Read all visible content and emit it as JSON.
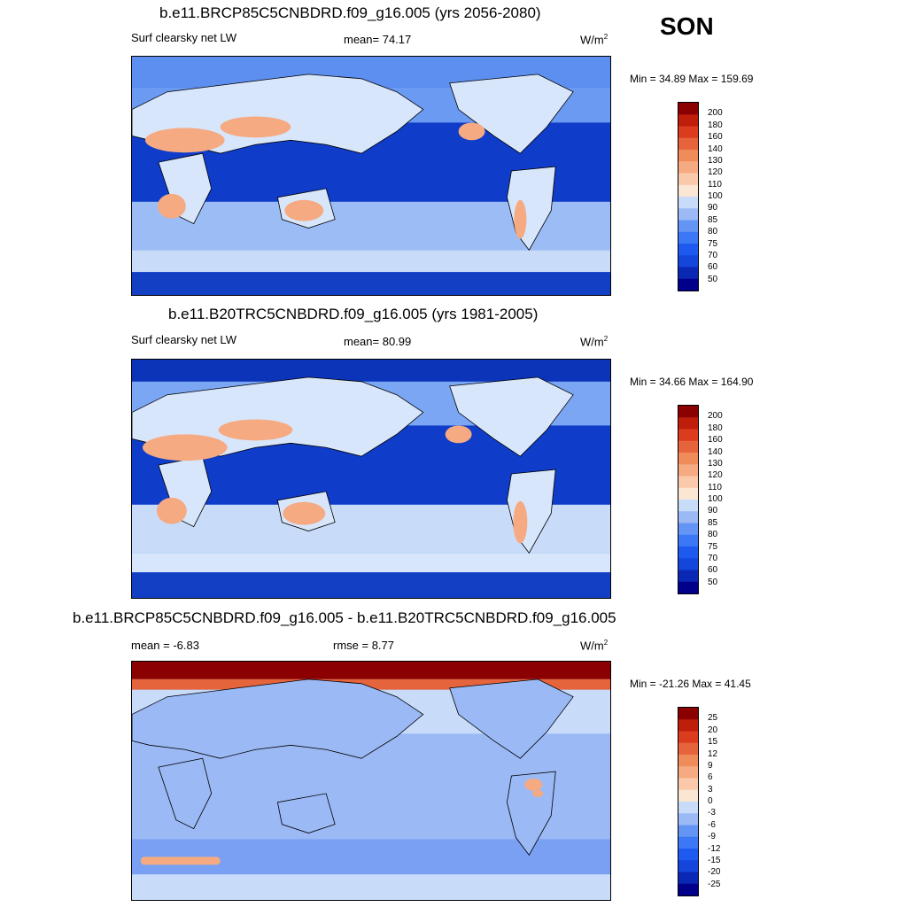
{
  "season": "SON",
  "colors": {
    "ocean_deep": "#0a3cd2",
    "ocean_mid": "#3c6ee6",
    "ocean_light": "#9bbcf5",
    "pale_blue": "#d8e6fb",
    "warm": "#f4a582",
    "hot": "#d9482a",
    "land_line": "#000000"
  },
  "panels": [
    {
      "title": "b.e11.BRCP85C5CNBDRD.f09_g16.005 (yrs 2056-2080)",
      "left_label": "Surf clearsky net LW",
      "mid_label": "mean=  74.17",
      "units_base": "W/m",
      "units_exp": "2",
      "minmax": "Min =  34.89 Max = 159.69"
    },
    {
      "title": "b.e11.B20TRC5CNBDRD.f09_g16.005 (yrs 1981-2005)",
      "left_label": "Surf clearsky net LW",
      "mid_label": "mean=  80.99",
      "units_base": "W/m",
      "units_exp": "2",
      "minmax": "Min =  34.66 Max = 164.90"
    },
    {
      "title": "b.e11.BRCP85C5CNBDRD.f09_g16.005 - b.e11.B20TRC5CNBDRD.f09_g16.005",
      "left_label": "mean =  -6.83",
      "mid_label": "rmse =   8.77",
      "units_base": "W/m",
      "units_exp": "2",
      "minmax": "Min = -21.26 Max =  41.45"
    }
  ],
  "chart_data": [
    {
      "type": "heatmap",
      "title": "b.e11.BRCP85C5CNBDRD.f09_g16.005 (yrs 2056-2080)",
      "variable": "Surf clearsky net LW",
      "units": "W/m2",
      "mean": 74.17,
      "min": 34.89,
      "max": 159.69,
      "colorbar_levels": [
        50,
        60,
        70,
        75,
        80,
        85,
        90,
        100,
        110,
        120,
        130,
        140,
        160,
        180,
        200
      ],
      "colorbar_colors": [
        "#00008b",
        "#0a28b4",
        "#1446dc",
        "#1e5af0",
        "#3c78f5",
        "#6495f5",
        "#9bb9f5",
        "#c8dcfa",
        "#fae6d2",
        "#fac8aa",
        "#f5aa82",
        "#f08c5a",
        "#e6643c",
        "#dc3c1e",
        "#be1e0a",
        "#8b0000"
      ]
    },
    {
      "type": "heatmap",
      "title": "b.e11.B20TRC5CNBDRD.f09_g16.005 (yrs 1981-2005)",
      "variable": "Surf clearsky net LW",
      "units": "W/m2",
      "mean": 80.99,
      "min": 34.66,
      "max": 164.9,
      "colorbar_levels": [
        50,
        60,
        70,
        75,
        80,
        85,
        90,
        100,
        110,
        120,
        130,
        140,
        160,
        180,
        200
      ],
      "colorbar_colors": [
        "#00008b",
        "#0a28b4",
        "#1446dc",
        "#1e5af0",
        "#3c78f5",
        "#6495f5",
        "#9bb9f5",
        "#c8dcfa",
        "#fae6d2",
        "#fac8aa",
        "#f5aa82",
        "#f08c5a",
        "#e6643c",
        "#dc3c1e",
        "#be1e0a",
        "#8b0000"
      ]
    },
    {
      "type": "heatmap",
      "title": "b.e11.BRCP85C5CNBDRD.f09_g16.005 - b.e11.B20TRC5CNBDRD.f09_g16.005",
      "units": "W/m2",
      "mean": -6.83,
      "rmse": 8.77,
      "min": -21.26,
      "max": 41.45,
      "colorbar_levels": [
        -25,
        -20,
        -15,
        -12,
        -9,
        -6,
        -3,
        0,
        3,
        6,
        9,
        12,
        15,
        20,
        25
      ],
      "colorbar_colors": [
        "#00008b",
        "#0a28b4",
        "#1446dc",
        "#1e5af0",
        "#3c78f5",
        "#6495f5",
        "#9bb9f5",
        "#c8dcfa",
        "#fae6d2",
        "#fac8aa",
        "#f5aa82",
        "#f08c5a",
        "#e6643c",
        "#dc3c1e",
        "#be1e0a",
        "#8b0000"
      ]
    }
  ]
}
